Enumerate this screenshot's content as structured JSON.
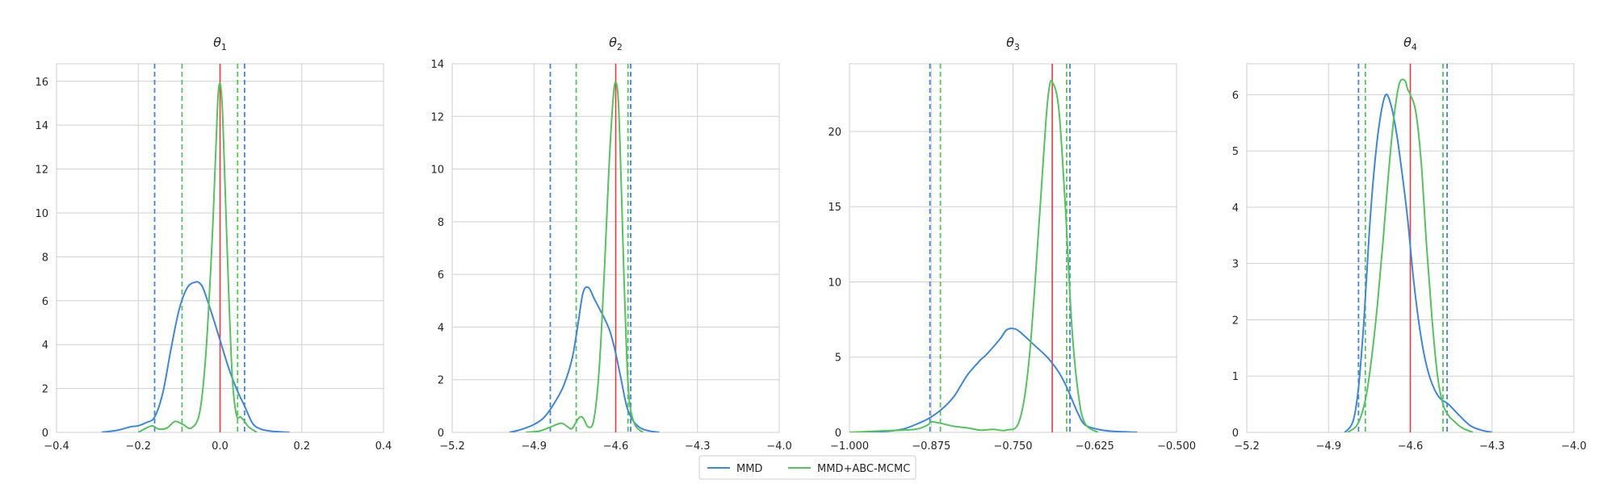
{
  "colors": {
    "mmd": "#3b87e0",
    "abc": "#52c45c",
    "truth": "#f0373c",
    "grid": "#cfcfcf",
    "axis": "#cfcfcf"
  },
  "legend": {
    "items": [
      {
        "label": "MMD",
        "color_key": "mmd"
      },
      {
        "label": "MMD+ABC-MCMC",
        "color_key": "abc"
      }
    ],
    "placement": "bottom-center"
  },
  "chart_data": [
    {
      "type": "line",
      "title": "θ1",
      "title_base": "θ",
      "title_sub": "1",
      "xlim": [
        -0.4,
        0.4
      ],
      "ylim": [
        0,
        16.8
      ],
      "xticks": [
        -0.4,
        -0.2,
        0.0,
        0.2,
        0.4
      ],
      "xtick_labels": [
        "−0.4",
        "−0.2",
        "0.0",
        "0.2",
        "0.4"
      ],
      "yticks": [
        0,
        2,
        4,
        6,
        8,
        10,
        12,
        14,
        16
      ],
      "ytick_labels": [
        "0",
        "2",
        "4",
        "6",
        "8",
        "10",
        "12",
        "14",
        "16"
      ],
      "grid": true,
      "true_value": 0.0,
      "intervals": {
        "mmd": [
          -0.16,
          0.06
        ],
        "abc": [
          -0.093,
          0.043
        ]
      },
      "series": [
        {
          "name": "MMD",
          "color_key": "mmd",
          "x": [
            -0.29,
            -0.25,
            -0.22,
            -0.2,
            -0.18,
            -0.16,
            -0.14,
            -0.12,
            -0.1,
            -0.08,
            -0.06,
            -0.05,
            -0.04,
            -0.02,
            0.0,
            0.02,
            0.04,
            0.06,
            0.08,
            0.1,
            0.12,
            0.14,
            0.17
          ],
          "y": [
            0.0,
            0.1,
            0.25,
            0.3,
            0.45,
            0.7,
            1.8,
            3.8,
            5.6,
            6.6,
            6.85,
            6.8,
            6.5,
            5.4,
            4.2,
            3.0,
            2.0,
            1.2,
            0.4,
            0.15,
            0.07,
            0.03,
            0.0
          ]
        },
        {
          "name": "MMD+ABC-MCMC",
          "color_key": "abc",
          "x": [
            -0.2,
            -0.18,
            -0.165,
            -0.15,
            -0.13,
            -0.11,
            -0.09,
            -0.07,
            -0.05,
            -0.035,
            -0.02,
            -0.01,
            -0.005,
            0.0,
            0.005,
            0.01,
            0.02,
            0.03,
            0.04,
            0.05,
            0.06,
            0.07,
            0.09
          ],
          "y": [
            0.0,
            0.2,
            0.3,
            0.15,
            0.2,
            0.5,
            0.35,
            0.2,
            0.9,
            3.5,
            8.5,
            13.0,
            15.3,
            15.9,
            15.0,
            12.5,
            7.0,
            2.5,
            0.8,
            0.7,
            0.5,
            0.25,
            0.0
          ]
        }
      ]
    },
    {
      "type": "line",
      "title": "θ2",
      "title_base": "θ",
      "title_sub": "2",
      "xlim": [
        -5.2,
        -4.0
      ],
      "ylim": [
        0,
        14
      ],
      "xticks": [
        -5.2,
        -4.9,
        -4.6,
        -4.3,
        -4.0
      ],
      "xtick_labels": [
        "−5.2",
        "−4.9",
        "−4.6",
        "−4.3",
        "−4.0"
      ],
      "yticks": [
        0,
        2,
        4,
        6,
        8,
        10,
        12,
        14
      ],
      "ytick_labels": [
        "0",
        "2",
        "4",
        "6",
        "8",
        "10",
        "12",
        "14"
      ],
      "grid": true,
      "true_value": -4.6,
      "intervals": {
        "mmd": [
          -4.84,
          -4.545
        ],
        "abc": [
          -4.745,
          -4.555
        ]
      },
      "series": [
        {
          "name": "MMD",
          "color_key": "mmd",
          "x": [
            -4.99,
            -4.95,
            -4.9,
            -4.86,
            -4.82,
            -4.79,
            -4.76,
            -4.74,
            -4.72,
            -4.7,
            -4.68,
            -4.66,
            -4.64,
            -4.62,
            -4.6,
            -4.58,
            -4.56,
            -4.54,
            -4.52,
            -4.5,
            -4.47,
            -4.44
          ],
          "y": [
            0.0,
            0.1,
            0.3,
            0.6,
            1.2,
            1.8,
            2.8,
            4.0,
            5.3,
            5.5,
            5.1,
            4.7,
            4.3,
            3.8,
            3.0,
            2.0,
            1.0,
            0.5,
            0.25,
            0.12,
            0.04,
            0.0
          ]
        },
        {
          "name": "MMD+ABC-MCMC",
          "color_key": "abc",
          "x": [
            -4.93,
            -4.88,
            -4.84,
            -4.8,
            -4.775,
            -4.76,
            -4.735,
            -4.72,
            -4.7,
            -4.68,
            -4.66,
            -4.64,
            -4.625,
            -4.61,
            -4.6,
            -4.59,
            -4.58,
            -4.57,
            -4.56,
            -4.55,
            -4.53,
            -4.5
          ],
          "y": [
            0.0,
            0.05,
            0.2,
            0.35,
            0.2,
            0.15,
            0.55,
            0.55,
            0.2,
            0.5,
            2.5,
            6.5,
            10.0,
            12.6,
            13.3,
            12.5,
            9.5,
            6.0,
            3.0,
            1.2,
            0.3,
            0.0
          ]
        }
      ]
    },
    {
      "type": "line",
      "title": "θ3",
      "title_base": "θ",
      "title_sub": "3",
      "xlim": [
        -1.0,
        -0.5
      ],
      "ylim": [
        0,
        24.5
      ],
      "xticks": [
        -1.0,
        -0.875,
        -0.75,
        -0.625,
        -0.5
      ],
      "xtick_labels": [
        "−1.000",
        "−0.875",
        "−0.750",
        "−0.625",
        "−0.500"
      ],
      "yticks": [
        0,
        5,
        10,
        15,
        20
      ],
      "ytick_labels": [
        "0",
        "5",
        "10",
        "15",
        "20"
      ],
      "grid": true,
      "true_value": -0.69,
      "intervals": {
        "mmd": [
          -0.877,
          -0.663
        ],
        "abc": [
          -0.861,
          -0.668
        ]
      },
      "series": [
        {
          "name": "MMD",
          "color_key": "mmd",
          "x": [
            -1.0,
            -0.95,
            -0.92,
            -0.9,
            -0.88,
            -0.86,
            -0.84,
            -0.82,
            -0.8,
            -0.79,
            -0.77,
            -0.76,
            -0.75,
            -0.74,
            -0.72,
            -0.7,
            -0.69,
            -0.68,
            -0.67,
            -0.66,
            -0.65,
            -0.64,
            -0.62,
            -0.6,
            -0.56
          ],
          "y": [
            0.0,
            0.05,
            0.2,
            0.5,
            0.9,
            1.5,
            2.4,
            3.8,
            4.8,
            5.2,
            6.2,
            6.8,
            6.9,
            6.7,
            5.9,
            5.1,
            4.6,
            4.0,
            3.2,
            2.2,
            1.2,
            0.5,
            0.2,
            0.08,
            0.0
          ]
        },
        {
          "name": "MMD+ABC-MCMC",
          "color_key": "abc",
          "x": [
            -1.0,
            -0.95,
            -0.9,
            -0.88,
            -0.875,
            -0.86,
            -0.84,
            -0.82,
            -0.8,
            -0.78,
            -0.76,
            -0.74,
            -0.725,
            -0.71,
            -0.7,
            -0.695,
            -0.69,
            -0.68,
            -0.67,
            -0.66,
            -0.65,
            -0.64,
            -0.62
          ],
          "y": [
            0.0,
            0.1,
            0.2,
            0.5,
            0.7,
            0.6,
            0.4,
            0.3,
            0.15,
            0.2,
            0.15,
            0.8,
            5.0,
            14.0,
            20.5,
            22.8,
            23.3,
            21.5,
            15.0,
            7.0,
            2.5,
            0.6,
            0.0
          ]
        }
      ]
    },
    {
      "type": "line",
      "title": "θ4",
      "title_base": "θ",
      "title_sub": "4",
      "xlim": [
        -5.2,
        -4.0
      ],
      "ylim": [
        0,
        6.55
      ],
      "xticks": [
        -5.2,
        -4.9,
        -4.6,
        -4.3,
        -4.0
      ],
      "xtick_labels": [
        "−5.2",
        "−4.9",
        "−4.6",
        "−4.3",
        "−4.0"
      ],
      "yticks": [
        0,
        1,
        2,
        3,
        4,
        5,
        6
      ],
      "ytick_labels": [
        "0",
        "1",
        "2",
        "3",
        "4",
        "5",
        "6"
      ],
      "grid": true,
      "true_value": -4.6,
      "intervals": {
        "mmd": [
          -4.79,
          -4.465
        ],
        "abc": [
          -4.765,
          -4.48
        ]
      },
      "series": [
        {
          "name": "MMD",
          "color_key": "mmd",
          "x": [
            -4.84,
            -4.81,
            -4.79,
            -4.77,
            -4.75,
            -4.73,
            -4.71,
            -4.69,
            -4.67,
            -4.65,
            -4.63,
            -4.61,
            -4.59,
            -4.57,
            -4.55,
            -4.53,
            -4.51,
            -4.49,
            -4.46,
            -4.42,
            -4.38,
            -4.34,
            -4.3
          ],
          "y": [
            0.0,
            0.2,
            0.8,
            2.0,
            3.6,
            4.8,
            5.6,
            6.0,
            5.8,
            5.3,
            4.6,
            3.8,
            2.8,
            2.0,
            1.4,
            1.0,
            0.75,
            0.6,
            0.5,
            0.3,
            0.12,
            0.04,
            0.0
          ]
        },
        {
          "name": "MMD+ABC-MCMC",
          "color_key": "abc",
          "x": [
            -4.83,
            -4.8,
            -4.78,
            -4.76,
            -4.74,
            -4.72,
            -4.7,
            -4.68,
            -4.66,
            -4.64,
            -4.62,
            -4.61,
            -4.6,
            -4.58,
            -4.56,
            -4.54,
            -4.52,
            -4.5,
            -4.48,
            -4.46,
            -4.44,
            -4.41,
            -4.37
          ],
          "y": [
            0.0,
            0.1,
            0.3,
            0.7,
            1.4,
            2.3,
            3.4,
            4.6,
            5.6,
            6.2,
            6.25,
            6.1,
            6.0,
            5.7,
            4.8,
            3.3,
            2.0,
            1.0,
            0.5,
            0.3,
            0.2,
            0.08,
            0.0
          ]
        }
      ]
    }
  ]
}
